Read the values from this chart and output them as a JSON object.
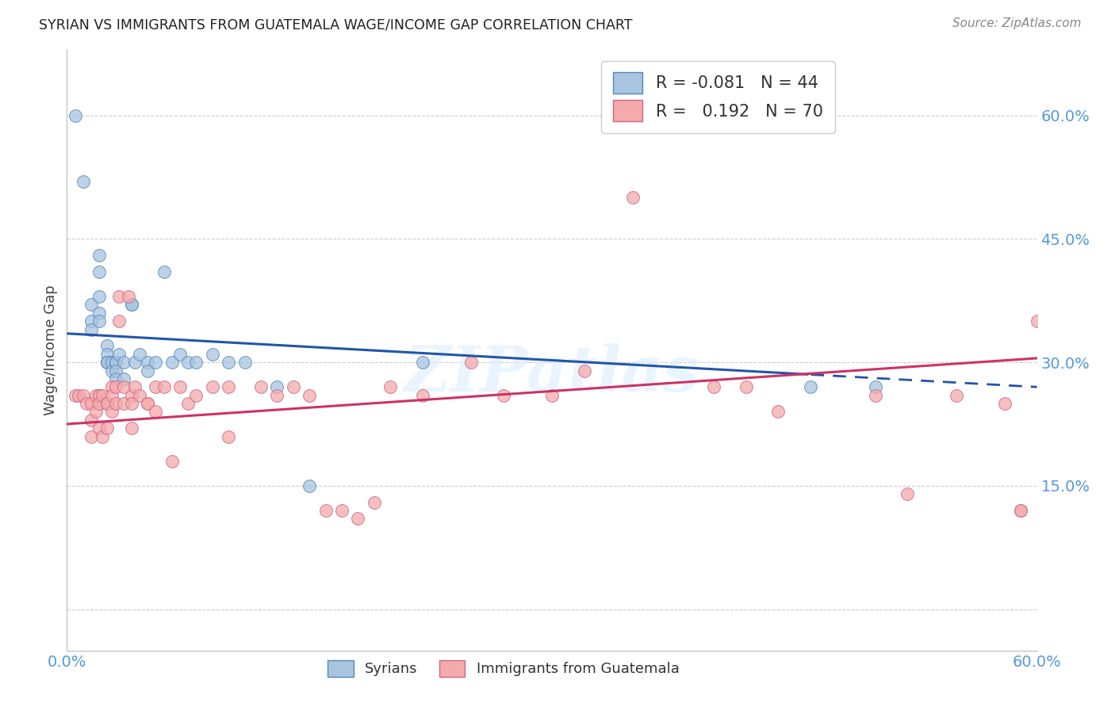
{
  "title": "SYRIAN VS IMMIGRANTS FROM GUATEMALA WAGE/INCOME GAP CORRELATION CHART",
  "source": "Source: ZipAtlas.com",
  "ylabel": "Wage/Income Gap",
  "right_yticks": [
    0.0,
    0.15,
    0.3,
    0.45,
    0.6
  ],
  "right_ytick_labels": [
    "",
    "15.0%",
    "30.0%",
    "45.0%",
    "60.0%"
  ],
  "xlim": [
    0.0,
    0.6
  ],
  "ylim": [
    -0.05,
    0.68
  ],
  "plot_ylim": [
    -0.05,
    0.68
  ],
  "watermark": "ZIPatlas",
  "legend_blue_R": -0.081,
  "legend_blue_N": 44,
  "legend_pink_R": 0.192,
  "legend_pink_N": 70,
  "blue_color": "#A8C4E0",
  "pink_color": "#F4AAAA",
  "blue_edge_color": "#5588BB",
  "pink_edge_color": "#CC6688",
  "blue_trend_color": "#2255AA",
  "pink_trend_color": "#CC3366",
  "background_color": "#FFFFFF",
  "grid_color": "#CCCCCC",
  "title_color": "#222222",
  "axis_label_color": "#5599DD",
  "trend_split_x": 0.46,
  "syrians_x": [
    0.005,
    0.01,
    0.015,
    0.015,
    0.015,
    0.02,
    0.02,
    0.02,
    0.02,
    0.02,
    0.025,
    0.025,
    0.025,
    0.025,
    0.025,
    0.028,
    0.028,
    0.03,
    0.03,
    0.03,
    0.03,
    0.032,
    0.035,
    0.035,
    0.04,
    0.04,
    0.042,
    0.045,
    0.05,
    0.05,
    0.055,
    0.06,
    0.065,
    0.07,
    0.075,
    0.08,
    0.09,
    0.1,
    0.11,
    0.13,
    0.15,
    0.22,
    0.46,
    0.5
  ],
  "syrians_y": [
    0.6,
    0.52,
    0.37,
    0.35,
    0.34,
    0.43,
    0.41,
    0.38,
    0.36,
    0.35,
    0.32,
    0.31,
    0.3,
    0.3,
    0.3,
    0.3,
    0.29,
    0.3,
    0.3,
    0.29,
    0.28,
    0.31,
    0.3,
    0.28,
    0.37,
    0.37,
    0.3,
    0.31,
    0.3,
    0.29,
    0.3,
    0.41,
    0.3,
    0.31,
    0.3,
    0.3,
    0.31,
    0.3,
    0.3,
    0.27,
    0.15,
    0.3,
    0.27,
    0.27
  ],
  "guatemala_x": [
    0.005,
    0.007,
    0.01,
    0.012,
    0.015,
    0.015,
    0.015,
    0.018,
    0.018,
    0.02,
    0.02,
    0.02,
    0.02,
    0.022,
    0.022,
    0.025,
    0.025,
    0.025,
    0.028,
    0.028,
    0.028,
    0.03,
    0.03,
    0.032,
    0.032,
    0.035,
    0.035,
    0.038,
    0.04,
    0.04,
    0.04,
    0.042,
    0.045,
    0.05,
    0.05,
    0.055,
    0.055,
    0.06,
    0.065,
    0.07,
    0.075,
    0.08,
    0.09,
    0.1,
    0.1,
    0.12,
    0.13,
    0.14,
    0.15,
    0.16,
    0.17,
    0.18,
    0.19,
    0.2,
    0.22,
    0.25,
    0.27,
    0.3,
    0.32,
    0.35,
    0.4,
    0.42,
    0.44,
    0.5,
    0.52,
    0.55,
    0.58,
    0.59,
    0.59,
    0.6
  ],
  "guatemala_y": [
    0.26,
    0.26,
    0.26,
    0.25,
    0.25,
    0.23,
    0.21,
    0.26,
    0.24,
    0.26,
    0.26,
    0.25,
    0.22,
    0.26,
    0.21,
    0.25,
    0.25,
    0.22,
    0.27,
    0.26,
    0.24,
    0.27,
    0.25,
    0.38,
    0.35,
    0.27,
    0.25,
    0.38,
    0.26,
    0.25,
    0.22,
    0.27,
    0.26,
    0.25,
    0.25,
    0.27,
    0.24,
    0.27,
    0.18,
    0.27,
    0.25,
    0.26,
    0.27,
    0.27,
    0.21,
    0.27,
    0.26,
    0.27,
    0.26,
    0.12,
    0.12,
    0.11,
    0.13,
    0.27,
    0.26,
    0.3,
    0.26,
    0.26,
    0.29,
    0.5,
    0.27,
    0.27,
    0.24,
    0.26,
    0.14,
    0.26,
    0.25,
    0.12,
    0.12,
    0.35
  ]
}
